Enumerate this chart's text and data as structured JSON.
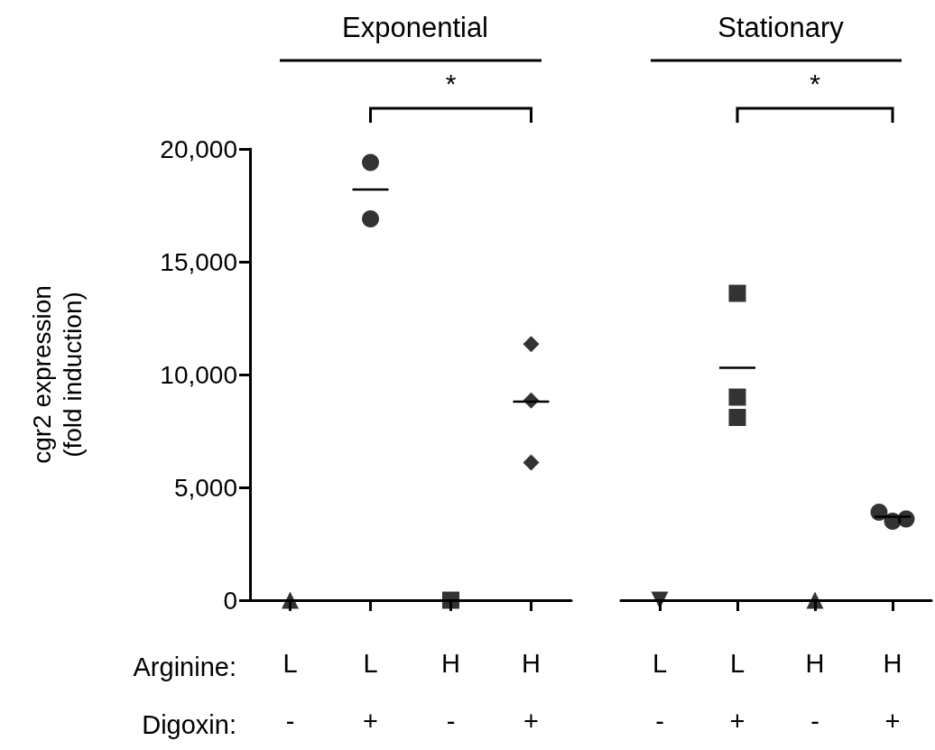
{
  "chart_data": [
    {
      "type": "scatter",
      "title": "Exponential",
      "ylabel": "cgr2 expression\n(fold induction)",
      "categories": [
        "L\n-",
        "L\n+",
        "H\n-",
        "H\n+"
      ],
      "ylim": [
        0,
        20000
      ],
      "yticks": [
        0,
        {
          "value": 5000,
          "label": "5,000"
        },
        {
          "value": 10000,
          "label": "10,000"
        },
        {
          "value": 15000,
          "label": "15,000"
        },
        {
          "value": 20000,
          "label": "20,000"
        }
      ],
      "grid": false,
      "annotations": [
        "*",
        "Arginine:",
        "Digoxin:"
      ],
      "series": [
        {
          "marker": "triangle",
          "color": "#000000",
          "x": [
            "L\n-"
          ],
          "values": [
            0
          ]
        },
        {
          "marker": "circle",
          "color": "#000000",
          "x": [
            "L\n+",
            "L\n+"
          ],
          "values": [
            19400,
            16900
          ]
        },
        {
          "marker": "square",
          "color": "#000000",
          "x": [
            "H\n-"
          ],
          "values": [
            0
          ]
        },
        {
          "marker": "diamond",
          "color": "#000000",
          "x": [
            "H\n+",
            "H\n+",
            "H\n+"
          ],
          "values": [
            11350,
            8850,
            6100
          ]
        },
        {
          "type": "box",
          "color": "#000000",
          "boxes": [
            null,
            {
              "low": 18200,
              "q1": 18200,
              "median": 18200,
              "q3": 18200,
              "high": 18200
            },
            null,
            {
              "low": 8800,
              "q1": 8800,
              "median": 8800,
              "q3": 8800,
              "high": 8800
            }
          ]
        }
      ]
    },
    {
      "type": "scatter",
      "title": "Stationary",
      "categories": [
        "L\n-",
        "L\n+",
        "H\n-",
        "H\n+"
      ],
      "ylim": [
        0,
        20000
      ],
      "tick_labels": "x",
      "grid": false,
      "annotations": [
        "*"
      ],
      "series": [
        {
          "marker": "triangle-down",
          "color": "#000000",
          "x": [
            "L\n-"
          ],
          "values": [
            0
          ]
        },
        {
          "marker": "square",
          "color": "#000000",
          "x": [
            "L\n+",
            "L\n+",
            "L\n+"
          ],
          "values": [
            13600,
            8100,
            9000
          ]
        },
        {
          "marker": "triangle",
          "color": "#000000",
          "x": [
            "H\n-"
          ],
          "values": [
            0
          ]
        },
        {
          "marker": "circle",
          "color": "#000000",
          "x": [
            "H\n+",
            "H\n+",
            "H\n+"
          ],
          "values": [
            3900,
            3500,
            3600
          ]
        },
        {
          "type": "box",
          "color": "#000000",
          "boxes": [
            null,
            {
              "low": 10300,
              "q1": 10300,
              "median": 10300,
              "q3": 10300,
              "high": 10300
            },
            null,
            {
              "low": 3700,
              "q1": 3700,
              "median": 3700,
              "q3": 3700,
              "high": 3700
            }
          ]
        }
      ]
    }
  ]
}
